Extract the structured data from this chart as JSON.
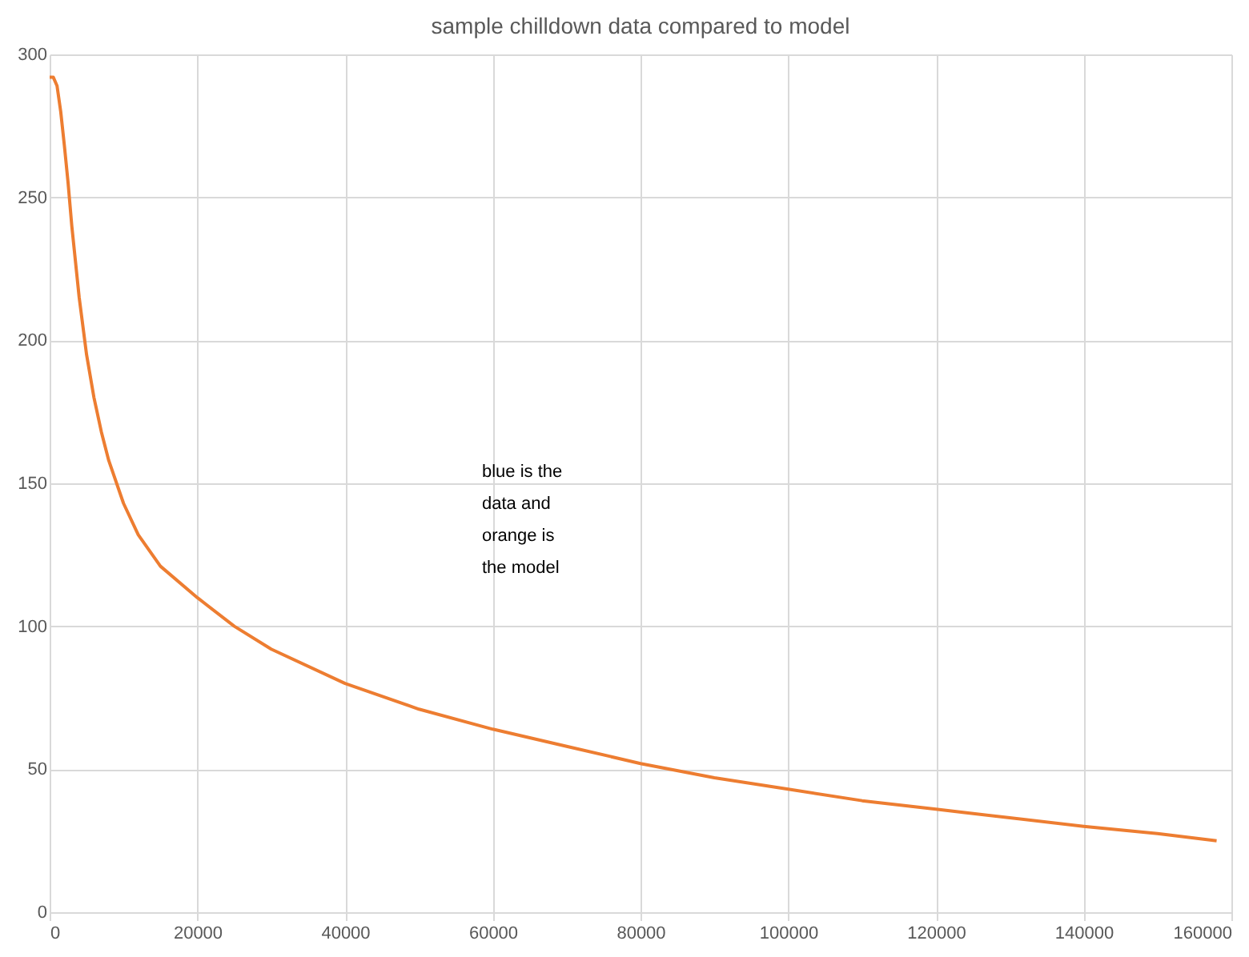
{
  "chart_data": {
    "type": "line",
    "title": "sample chilldown data compared to model",
    "x": [
      0,
      500,
      1000,
      1500,
      2000,
      2500,
      3000,
      4000,
      5000,
      6000,
      7000,
      8000,
      10000,
      12000,
      15000,
      20000,
      25000,
      30000,
      40000,
      50000,
      60000,
      70000,
      80000,
      90000,
      100000,
      110000,
      120000,
      130000,
      140000,
      150000,
      158000
    ],
    "series": [
      {
        "color": "#ed7d31",
        "values": [
          292,
          292,
          289,
          280,
          268,
          255,
          240,
          215,
          195,
          180,
          168,
          158,
          143,
          132,
          121,
          110,
          100,
          92,
          80,
          71,
          64,
          58,
          52,
          47,
          43,
          39,
          36,
          33,
          30,
          27.5,
          25
        ]
      }
    ],
    "xlim": [
      0,
      160000
    ],
    "xticks": [
      0,
      20000,
      40000,
      60000,
      80000,
      100000,
      120000,
      140000,
      160000
    ],
    "ylim": [
      0,
      300
    ],
    "yticks": [
      0,
      50,
      100,
      150,
      200,
      250,
      300
    ],
    "grid": true,
    "marker": "none",
    "line_style": "solid",
    "annotations": [
      "blue is the data and orange is the model"
    ]
  }
}
